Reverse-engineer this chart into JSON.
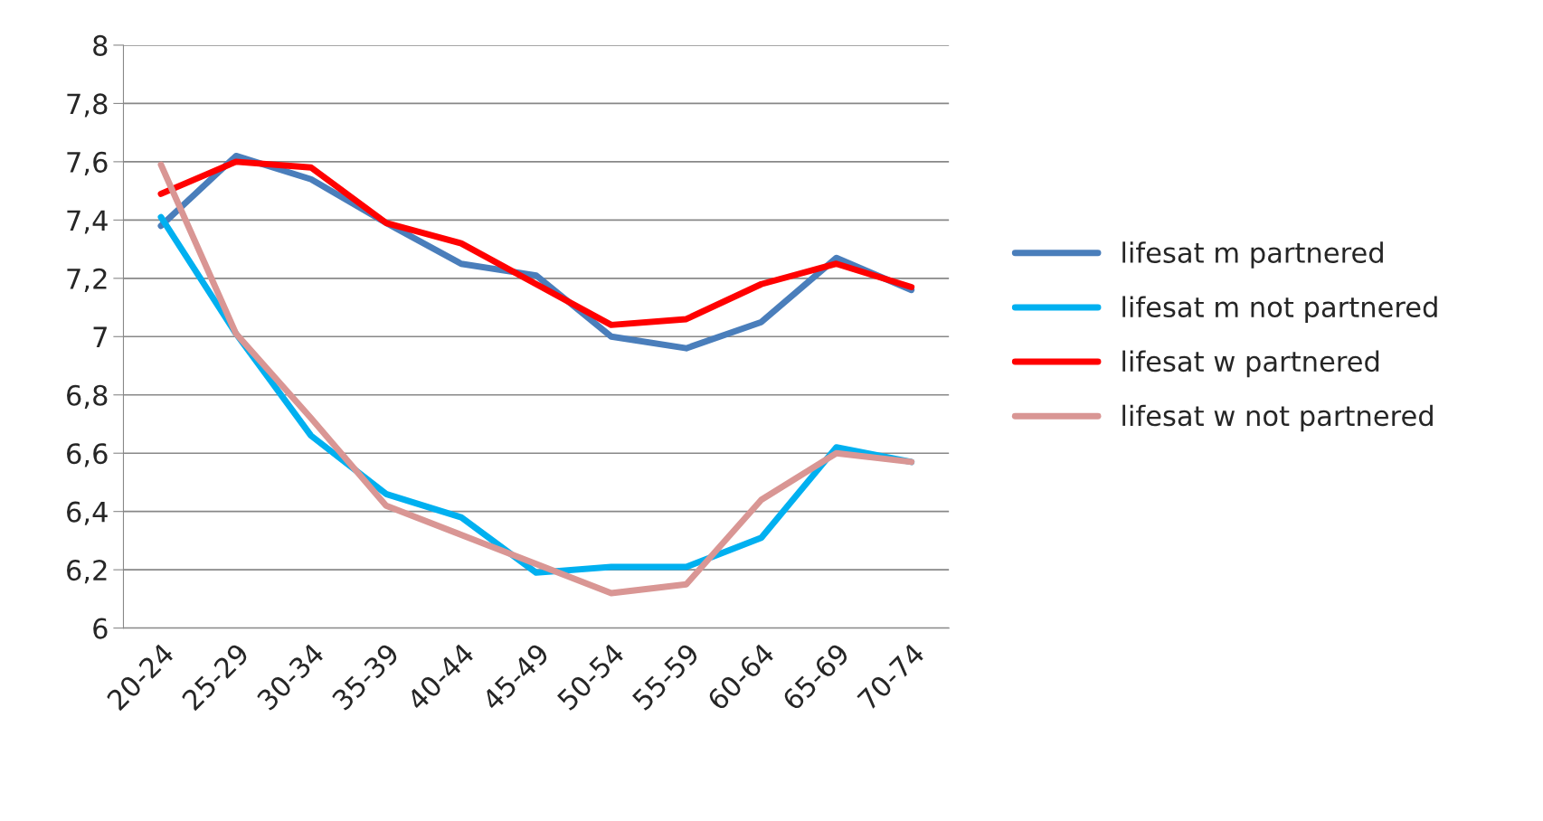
{
  "chart_data": {
    "type": "line",
    "categories": [
      "20-24",
      "25-29",
      "30-34",
      "35-39",
      "40-44",
      "45-49",
      "50-54",
      "55-59",
      "60-64",
      "65-69",
      "70-74"
    ],
    "series": [
      {
        "name": "lifesat m partnered",
        "color": "#4a7ebb",
        "values": [
          7.38,
          7.62,
          7.54,
          7.39,
          7.25,
          7.21,
          7.0,
          6.96,
          7.05,
          7.27,
          7.16
        ]
      },
      {
        "name": "lifesat m not partnered",
        "color": "#00b0f0",
        "values": [
          7.41,
          7.01,
          6.66,
          6.46,
          6.38,
          6.19,
          6.21,
          6.21,
          6.31,
          6.62,
          6.57
        ]
      },
      {
        "name": "lifesat w partnered",
        "color": "#ff0000",
        "values": [
          7.49,
          7.6,
          7.58,
          7.39,
          7.32,
          7.18,
          7.04,
          7.06,
          7.18,
          7.25,
          7.17
        ]
      },
      {
        "name": "lifesat w not partnered",
        "color": "#d99694",
        "values": [
          7.59,
          7.01,
          6.72,
          6.42,
          6.32,
          6.22,
          6.12,
          6.15,
          6.44,
          6.6,
          6.57
        ]
      }
    ],
    "ylim": [
      6,
      8
    ],
    "yticks": [
      6,
      {
        "value": 6.2,
        "label": "6,2"
      },
      {
        "value": 6.4,
        "label": "6,4"
      },
      {
        "value": 6.6,
        "label": "6,6"
      },
      {
        "value": 6.8,
        "label": "6,8"
      },
      7,
      {
        "value": 7.2,
        "label": "7,2"
      },
      {
        "value": 7.4,
        "label": "7,4"
      },
      {
        "value": 7.6,
        "label": "7,6"
      },
      {
        "value": 7.8,
        "label": "7,8"
      },
      8
    ],
    "grid": "y",
    "legend": "right",
    "marker": "none",
    "line_style": "solid"
  }
}
